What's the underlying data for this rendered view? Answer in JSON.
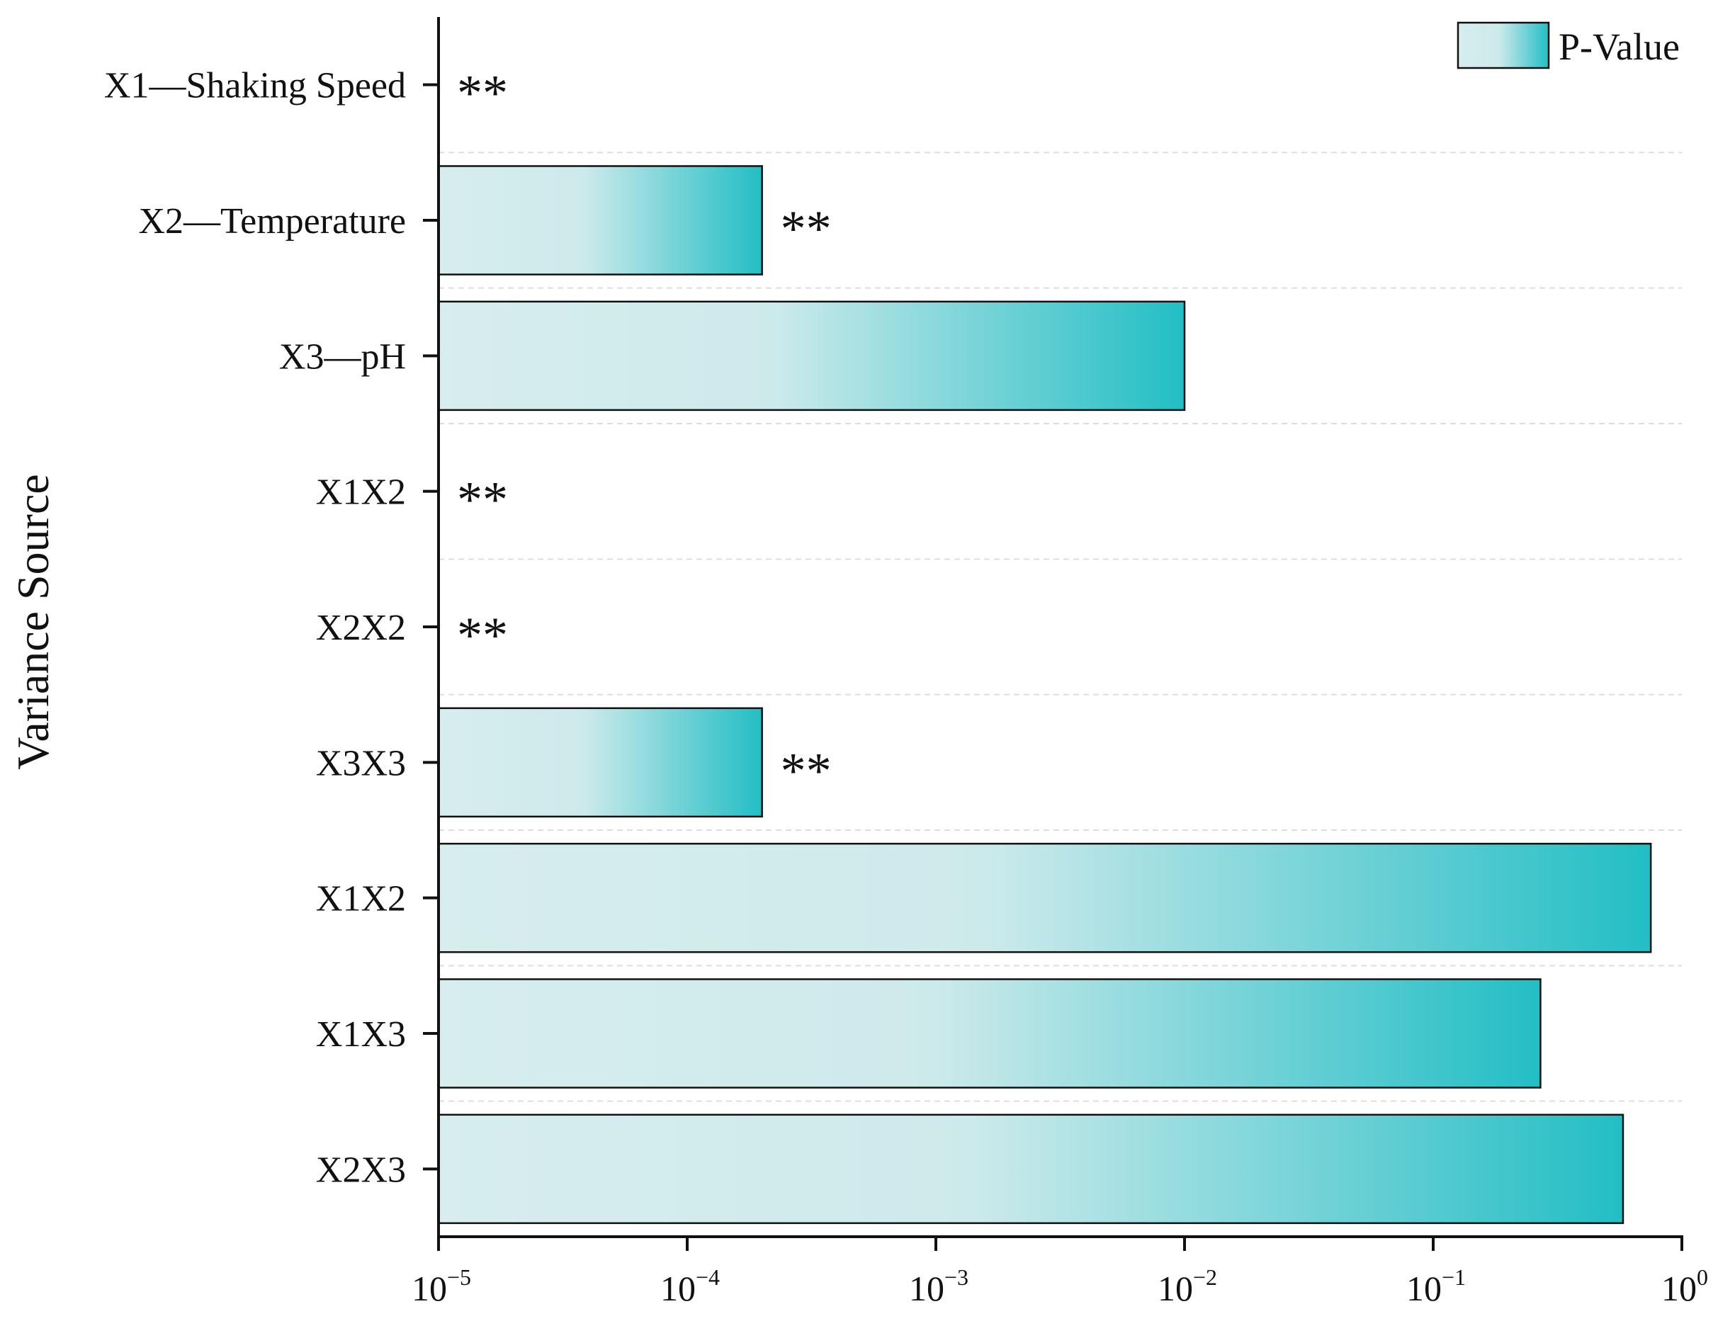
{
  "chart_data": {
    "type": "bar",
    "orientation": "horizontal",
    "title": "",
    "xlabel": "",
    "ylabel": "Variance Source",
    "xscale": "log",
    "xlim": [
      1e-05,
      1
    ],
    "x_ticks": [
      {
        "value": 1e-05,
        "base": "10",
        "exp": "−5"
      },
      {
        "value": 0.0001,
        "base": "10",
        "exp": "−4"
      },
      {
        "value": 0.001,
        "base": "10",
        "exp": "−3"
      },
      {
        "value": 0.01,
        "base": "10",
        "exp": "−2"
      },
      {
        "value": 0.1,
        "base": "10",
        "exp": "−1"
      },
      {
        "value": 1,
        "base": "10",
        "exp": "0"
      }
    ],
    "categories": [
      "X1—Shaking Speed",
      "X2—Temperature",
      "X3—pH",
      "X1X2",
      "X2X2",
      "X3X3",
      "X1X2",
      "X1X3",
      "X2X3"
    ],
    "series": [
      {
        "name": "P-Value",
        "values": [
          1e-05,
          0.0002,
          0.01,
          1e-05,
          1e-05,
          0.0002,
          0.75,
          0.27,
          0.58
        ],
        "significance": [
          "**",
          "**",
          "",
          "**",
          "**",
          "**",
          "",
          "",
          ""
        ]
      }
    ],
    "legend": {
      "label": "P-Value",
      "position": "top-right"
    },
    "grid": "horizontal dashed separators",
    "colors": {
      "gradient_start": "#d7edee",
      "gradient_end": "#22bec5",
      "bar_edge": "#111111",
      "axis": "#111111",
      "grid": "#dddddd"
    }
  }
}
